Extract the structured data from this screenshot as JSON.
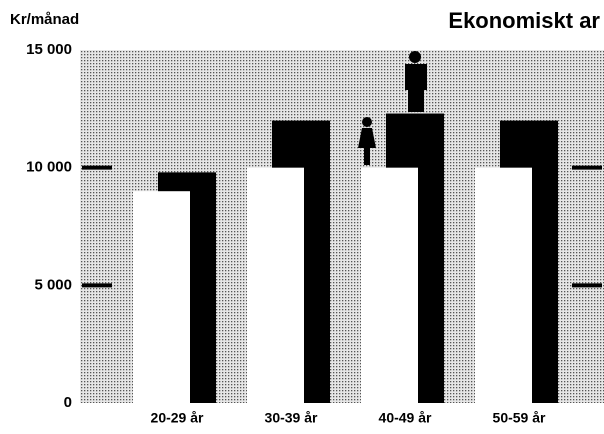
{
  "chart_data": {
    "type": "bar",
    "title": "Ekonomiskt ar",
    "y_label": "Kr/månad",
    "categories": [
      "20-29 år",
      "30-39 år",
      "40-49 år",
      "50-59 år"
    ],
    "series": [
      {
        "color": "#ffffff",
        "values": [
          9000,
          10000,
          10000,
          10000
        ]
      },
      {
        "color": "#000000",
        "values": [
          9800,
          12000,
          12300,
          12000
        ]
      }
    ],
    "ylim": [
      0,
      15000
    ],
    "yticks": [
      0,
      {
        "value": 5000,
        "label": "5 000"
      },
      {
        "value": 10000,
        "label": "10 000"
      },
      {
        "value": 15000,
        "label": "15 000"
      }
    ]
  }
}
